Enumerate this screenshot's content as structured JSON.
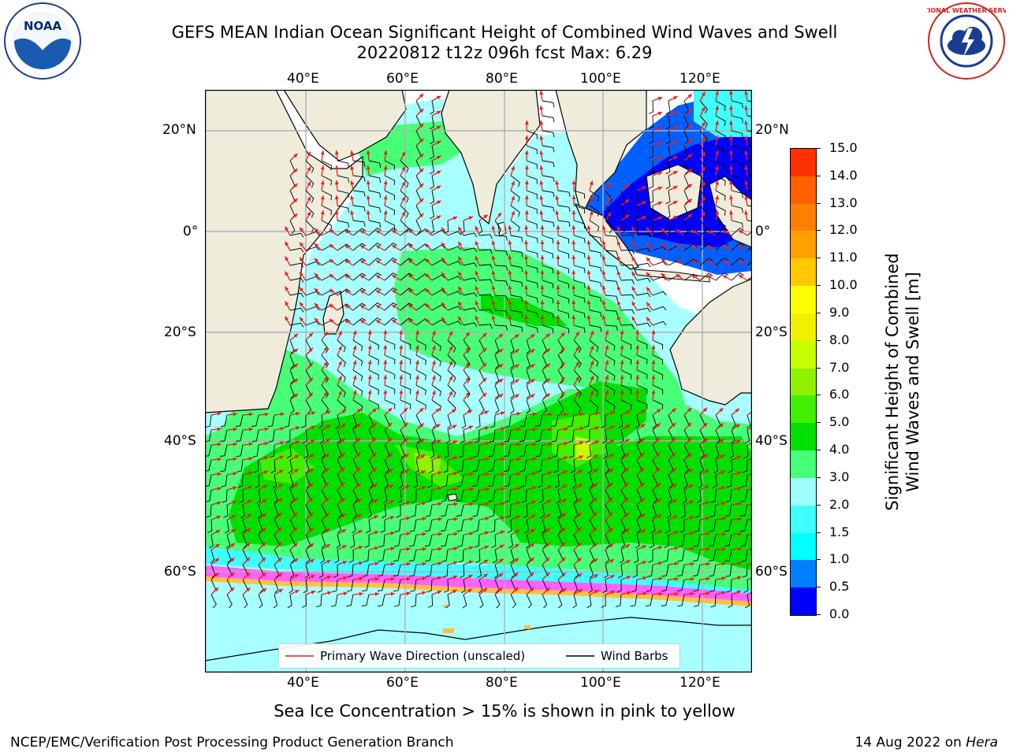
{
  "title": {
    "line1": "GEFS MEAN Indian Ocean Significant Height of Combined Wind Waves and Swell",
    "line2": "20220812 t12z 096h fcst   Max: 6.29"
  },
  "map": {
    "lon_ticks": [
      "40°E",
      "60°E",
      "80°E",
      "100°E",
      "120°E"
    ],
    "lat_ticks": [
      "20°N",
      "0°",
      "20°S",
      "40°S",
      "60°S"
    ],
    "ocean_region": "Indian Ocean",
    "field": "Significant Height of Combined Wind Waves and Swell",
    "colors": {
      "land": "#efecdc",
      "ice_free_white": "#ffffff",
      "wave_arrow": "#e8201a",
      "wind_barb": "#000000"
    }
  },
  "legend": {
    "primary_wave": "Primary Wave Direction (unscaled)",
    "wind_barbs": "Wind Barbs"
  },
  "colorbar": {
    "label_line1": "Significant Height of Combined",
    "label_line2": "Wind Waves and Swell [m]",
    "ticks": [
      "15.0",
      "14.0",
      "13.0",
      "12.0",
      "11.0",
      "10.0",
      "9.0",
      "8.0",
      "7.0",
      "6.0",
      "5.0",
      "4.0",
      "3.0",
      "2.0",
      "1.5",
      "1.0",
      "0.5",
      "0.0"
    ],
    "colors": [
      "#0000ff",
      "#0080ff",
      "#00ffff",
      "#40ffff",
      "#a0ffff",
      "#48ff78",
      "#00e000",
      "#40f000",
      "#90f000",
      "#c8ff00",
      "#f0f000",
      "#ffff00",
      "#ffc800",
      "#ffa000",
      "#ff8000",
      "#ff6000",
      "#ff3000",
      "#ff0000"
    ]
  },
  "note": "Sea Ice Concentration > 15% is shown in pink to yellow",
  "footer": {
    "left": "NCEP/EMC/Verification Post Processing Product Generation Branch",
    "right_prefix": "14 Aug 2022 on ",
    "right_host": "Hera"
  },
  "logos": {
    "noaa": "NOAA",
    "nws": "NATIONAL WEATHER SERVICE"
  }
}
